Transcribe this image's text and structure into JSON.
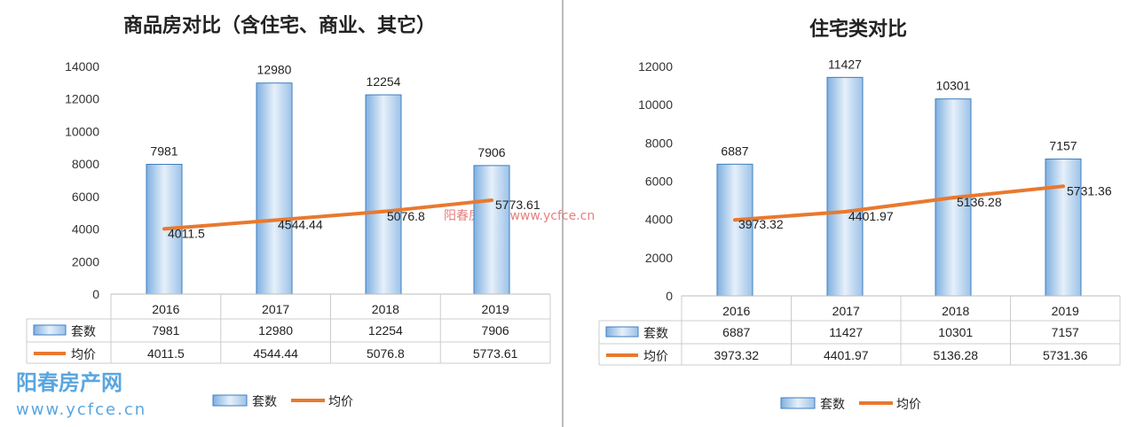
{
  "chart_data": [
    {
      "type": "bar+line",
      "title": "商品房对比（含住宅、商业、其它）",
      "categories": [
        "2016",
        "2017",
        "2018",
        "2019"
      ],
      "ylim": [
        0,
        14000
      ],
      "yticks": [
        0,
        2000,
        4000,
        6000,
        8000,
        10000,
        12000,
        14000
      ],
      "grid": false,
      "legend": "bottom",
      "series": [
        {
          "name": "套数",
          "type": "bar",
          "values": [
            7981,
            12980,
            12254,
            7906
          ],
          "labels": [
            "7981",
            "12980",
            "12254",
            "7906"
          ],
          "color": "#a9cbea"
        },
        {
          "name": "均价",
          "type": "line",
          "values": [
            4011.5,
            4544.44,
            5076.8,
            5773.61
          ],
          "labels": [
            "4011.5",
            "4544.44",
            "5076.8",
            "5773.61"
          ],
          "color": "#e8792f"
        }
      ],
      "data_table": true
    },
    {
      "type": "bar+line",
      "title": "住宅类对比",
      "categories": [
        "2016",
        "2017",
        "2018",
        "2019"
      ],
      "ylim": [
        0,
        12000
      ],
      "yticks": [
        0,
        2000,
        4000,
        6000,
        8000,
        10000,
        12000
      ],
      "grid": false,
      "legend": "bottom",
      "series": [
        {
          "name": "套数",
          "type": "bar",
          "values": [
            6887,
            11427,
            10301,
            7157
          ],
          "labels": [
            "6887",
            "11427",
            "10301",
            "7157"
          ],
          "color": "#a9cbea"
        },
        {
          "name": "均价",
          "type": "line",
          "values": [
            3973.32,
            4401.97,
            5136.28,
            5731.36
          ],
          "labels": [
            "3973.32",
            "4401.97",
            "5136.28",
            "5731.36"
          ],
          "color": "#e8792f"
        }
      ],
      "data_table": true
    }
  ],
  "watermark": {
    "center_text": "阳春房产网  www.ycfce.cn",
    "logo_name": "阳春房产网",
    "logo_url": "www.ycfce.cn"
  }
}
